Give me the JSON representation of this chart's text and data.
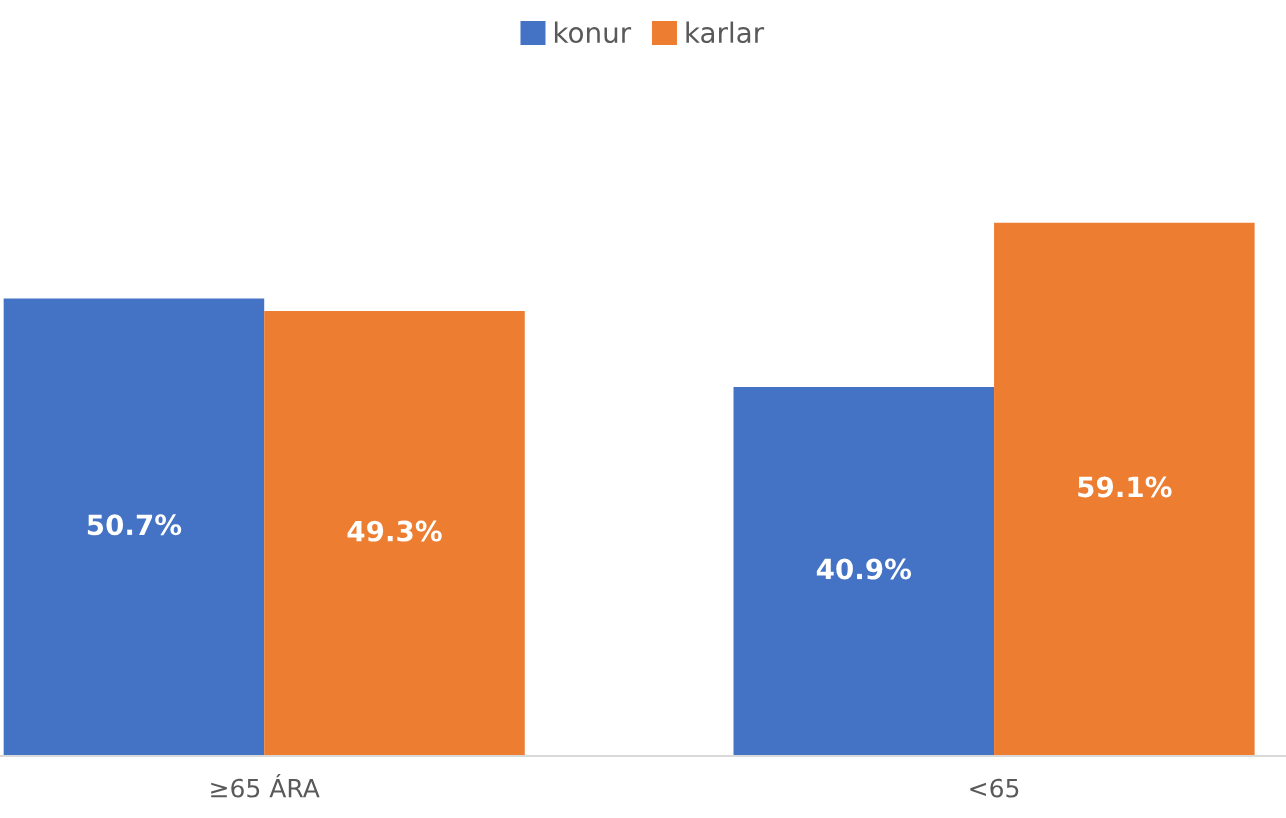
{
  "chart_data": {
    "type": "bar",
    "categories": [
      "≥65 ÁRA",
      "<65"
    ],
    "series": [
      {
        "name": "konur",
        "color": "#4472c4",
        "values": [
          50.7,
          40.9
        ],
        "value_labels": [
          "50.7%",
          "40.9%"
        ]
      },
      {
        "name": "karlar",
        "color": "#ed7d31",
        "values": [
          49.3,
          59.1
        ],
        "value_labels": [
          "49.3%",
          "59.1%"
        ]
      }
    ],
    "legend": "top",
    "grid": false
  }
}
